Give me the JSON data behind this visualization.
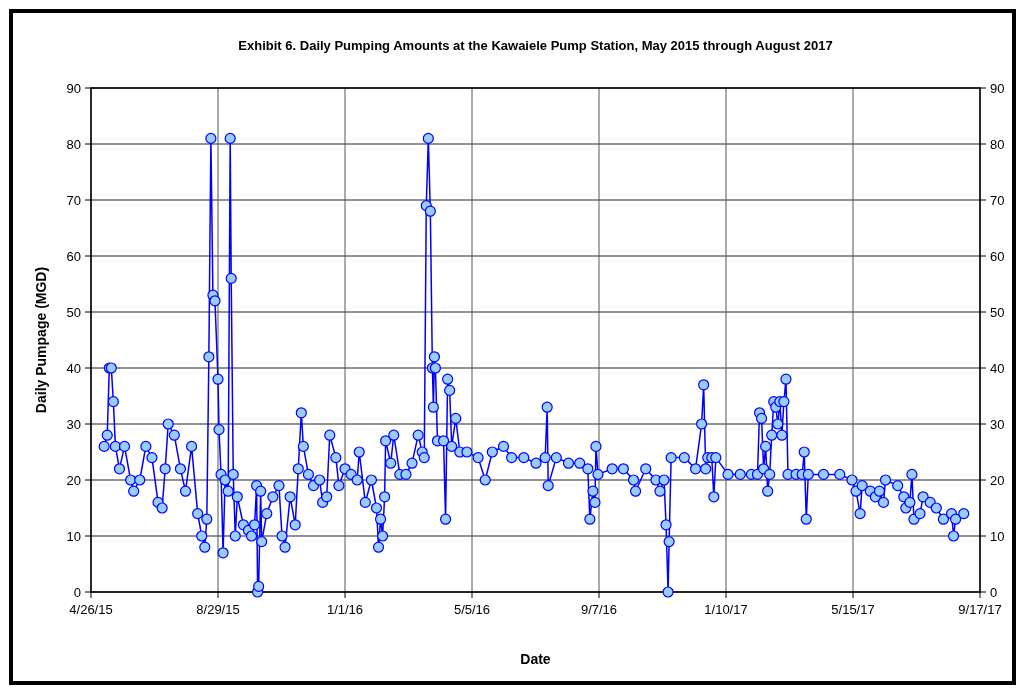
{
  "chart_data": {
    "type": "line",
    "title": "Exhibit 6. Daily Pumping Amounts at the Kawaiele Pump Station, May 2015 through August 2017",
    "xlabel": "Date",
    "ylabel": "Daily Pumpage (MGD)",
    "x": [
      "2015-05-09",
      "2015-05-12",
      "2015-05-14",
      "2015-05-16",
      "2015-05-18",
      "2015-05-20",
      "2015-05-24",
      "2015-05-29",
      "2015-06-04",
      "2015-06-07",
      "2015-06-13",
      "2015-06-19",
      "2015-06-25",
      "2015-07-01",
      "2015-07-05",
      "2015-07-08",
      "2015-07-11",
      "2015-07-17",
      "2015-07-23",
      "2015-07-28",
      "2015-08-03",
      "2015-08-09",
      "2015-08-13",
      "2015-08-16",
      "2015-08-18",
      "2015-08-20",
      "2015-08-22",
      "2015-08-24",
      "2015-08-26",
      "2015-08-29",
      "2015-08-30",
      "2015-09-01",
      "2015-09-03",
      "2015-09-05",
      "2015-09-08",
      "2015-09-10",
      "2015-09-11",
      "2015-09-13",
      "2015-09-15",
      "2015-09-17",
      "2015-09-23",
      "2015-09-28",
      "2015-10-01",
      "2015-10-04",
      "2015-10-06",
      "2015-10-07",
      "2015-10-08",
      "2015-10-10",
      "2015-10-11",
      "2015-10-16",
      "2015-10-22",
      "2015-10-28",
      "2015-10-31",
      "2015-11-03",
      "2015-11-08",
      "2015-11-13",
      "2015-11-16",
      "2015-11-19",
      "2015-11-21",
      "2015-11-26",
      "2015-12-01",
      "2015-12-07",
      "2015-12-10",
      "2015-12-14",
      "2015-12-17",
      "2015-12-23",
      "2015-12-26",
      "2016-01-01",
      "2016-01-07",
      "2016-01-13",
      "2016-01-15",
      "2016-01-21",
      "2016-01-27",
      "2016-02-01",
      "2016-02-03",
      "2016-02-05",
      "2016-02-07",
      "2016-02-09",
      "2016-02-10",
      "2016-02-15",
      "2016-02-18",
      "2016-02-24",
      "2016-03-01",
      "2016-03-07",
      "2016-03-13",
      "2016-03-17",
      "2016-03-19",
      "2016-03-21",
      "2016-03-23",
      "2016-03-25",
      "2016-03-27",
      "2016-03-28",
      "2016-03-29",
      "2016-03-30",
      "2016-04-01",
      "2016-04-07",
      "2016-04-09",
      "2016-04-11",
      "2016-04-13",
      "2016-04-15",
      "2016-04-19",
      "2016-04-23",
      "2016-04-30",
      "2016-05-11",
      "2016-05-18",
      "2016-05-25",
      "2016-06-05",
      "2016-06-13",
      "2016-06-25",
      "2016-07-07",
      "2016-07-16",
      "2016-07-18",
      "2016-07-19",
      "2016-07-27",
      "2016-08-08",
      "2016-08-19",
      "2016-08-27",
      "2016-08-29",
      "2016-09-01",
      "2016-09-03",
      "2016-09-04",
      "2016-09-06",
      "2016-09-20",
      "2016-10-01",
      "2016-10-11",
      "2016-10-13",
      "2016-10-23",
      "2016-11-02",
      "2016-11-06",
      "2016-11-10",
      "2016-11-12",
      "2016-11-14",
      "2016-11-15",
      "2016-11-17",
      "2016-11-30",
      "2016-12-11",
      "2016-12-17",
      "2016-12-19",
      "2016-12-21",
      "2016-12-23",
      "2016-12-27",
      "2016-12-29",
      "2016-12-31",
      "2017-01-12",
      "2017-01-24",
      "2017-02-04",
      "2017-02-10",
      "2017-02-12",
      "2017-02-14",
      "2017-02-16",
      "2017-02-18",
      "2017-02-20",
      "2017-02-22",
      "2017-02-24",
      "2017-02-26",
      "2017-02-28",
      "2017-03-02",
      "2017-03-04",
      "2017-03-06",
      "2017-03-08",
      "2017-03-10",
      "2017-03-12",
      "2017-03-20",
      "2017-03-26",
      "2017-03-28",
      "2017-03-30",
      "2017-04-01",
      "2017-04-16",
      "2017-05-02",
      "2017-05-14",
      "2017-05-18",
      "2017-05-22",
      "2017-05-24",
      "2017-06-01",
      "2017-06-06",
      "2017-06-10",
      "2017-06-14",
      "2017-06-16",
      "2017-06-28",
      "2017-07-04",
      "2017-07-06",
      "2017-07-10",
      "2017-07-12",
      "2017-07-14",
      "2017-07-20",
      "2017-07-23",
      "2017-07-30",
      "2017-08-05",
      "2017-08-12",
      "2017-08-20",
      "2017-08-22",
      "2017-08-24",
      "2017-09-01"
    ],
    "series": [
      {
        "color": "#0000ff",
        "values": [
          26,
          28,
          40,
          40,
          34,
          26,
          22,
          26,
          20,
          18,
          20,
          26,
          24,
          16,
          15,
          22,
          30,
          28,
          22,
          18,
          26,
          14,
          10,
          8,
          13,
          42,
          81,
          53,
          52,
          38,
          29,
          21,
          7,
          20,
          18,
          81,
          56,
          21,
          10,
          17,
          12,
          11,
          10,
          12,
          19,
          0,
          1,
          18,
          9,
          14,
          17,
          19,
          10,
          8,
          17,
          12,
          22,
          32,
          26,
          21,
          19,
          20,
          16,
          17,
          28,
          24,
          19,
          22,
          21,
          20,
          25,
          16,
          20,
          15,
          8,
          13,
          10,
          17,
          27,
          23,
          28,
          21,
          21,
          23,
          28,
          25,
          24,
          69,
          81,
          68,
          40,
          33,
          42,
          40,
          27,
          27,
          13,
          38,
          36,
          26,
          31,
          25,
          25,
          24,
          20,
          25,
          26,
          24,
          24,
          23,
          24,
          33,
          19,
          24,
          23,
          23,
          22,
          13,
          18,
          16,
          26,
          21,
          22,
          22,
          20,
          18,
          22,
          20,
          18,
          20,
          12,
          0,
          9,
          24,
          24,
          22,
          30,
          37,
          22,
          24,
          24,
          17,
          24,
          21,
          21,
          21,
          21,
          32,
          31,
          22,
          26,
          18,
          21,
          28,
          34,
          33,
          30,
          34,
          28,
          34,
          38,
          21,
          21,
          21,
          25,
          13,
          21,
          21,
          21,
          20,
          18,
          14,
          19,
          18,
          17,
          18,
          16,
          20,
          19,
          17,
          15,
          16,
          21,
          13,
          14,
          17,
          16,
          15,
          13,
          14,
          10,
          13,
          14
        ]
      }
    ],
    "xlim": [
      "2015-04-26",
      "2017-09-17"
    ],
    "xticks": [
      {
        "value": "2015-04-26",
        "label": "4/26/15"
      },
      {
        "value": "2015-08-29",
        "label": "8/29/15"
      },
      {
        "value": "2016-01-01",
        "label": "1/1/16"
      },
      {
        "value": "2016-05-05",
        "label": "5/5/16"
      },
      {
        "value": "2016-09-07",
        "label": "9/7/16"
      },
      {
        "value": "2017-01-10",
        "label": "1/10/17"
      },
      {
        "value": "2017-05-15",
        "label": "5/15/17"
      },
      {
        "value": "2017-09-17",
        "label": "9/17/17"
      }
    ],
    "ylim": [
      0,
      90
    ],
    "yticks": [
      0,
      10,
      20,
      30,
      40,
      50,
      60,
      70,
      80,
      90
    ],
    "y2lim": [
      0,
      90
    ],
    "y2ticks": [
      0,
      10,
      20,
      30,
      40,
      50,
      60,
      70,
      80,
      90
    ],
    "grid": true,
    "marker": "circle",
    "line_style": "solid"
  }
}
